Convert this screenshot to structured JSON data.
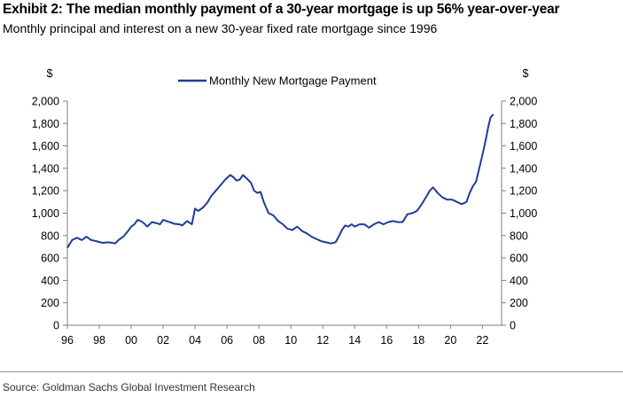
{
  "header": {
    "title": "Exhibit 2: The median monthly payment of a 30-year mortgage is up 56% year-over-year",
    "subtitle": "Monthly principal and interest on a new 30-year fixed rate mortgage since 1996"
  },
  "footer": {
    "source": "Source: Goldman Sachs Global Investment Research"
  },
  "chart_data": {
    "type": "line",
    "title": "",
    "xlabel": "",
    "ylabel_left": "$",
    "ylabel_right": "$",
    "xlim": [
      1996,
      2023.2
    ],
    "ylim": [
      0,
      2000
    ],
    "x_ticks": [
      1996,
      1998,
      2000,
      2002,
      2004,
      2006,
      2008,
      2010,
      2012,
      2014,
      2016,
      2018,
      2020,
      2022
    ],
    "x_tick_labels": [
      "96",
      "98",
      "00",
      "02",
      "04",
      "06",
      "08",
      "10",
      "12",
      "14",
      "16",
      "18",
      "20",
      "22"
    ],
    "y_ticks": [
      0,
      200,
      400,
      600,
      800,
      1000,
      1200,
      1400,
      1600,
      1800,
      2000
    ],
    "y_tick_labels": [
      "0",
      "200",
      "400",
      "600",
      "800",
      "1,000",
      "1,200",
      "1,400",
      "1,600",
      "1,800",
      "2,000"
    ],
    "grid": false,
    "legend": "top-center",
    "color": "#1f3c99",
    "series": [
      {
        "name": "Monthly New Mortgage Payment",
        "x": [
          1996.0,
          1996.3,
          1996.6,
          1996.9,
          1997.2,
          1997.5,
          1997.8,
          1998.2,
          1998.6,
          1999.0,
          1999.2,
          1999.5,
          1999.8,
          2000.0,
          2000.2,
          2000.4,
          2000.6,
          2000.8,
          2001.0,
          2001.3,
          2001.6,
          2001.8,
          2002.0,
          2002.2,
          2002.4,
          2002.7,
          2003.0,
          2003.2,
          2003.5,
          2003.8,
          2004.0,
          2004.2,
          2004.5,
          2004.8,
          2005.0,
          2005.3,
          2005.6,
          2005.9,
          2006.2,
          2006.4,
          2006.6,
          2006.8,
          2007.0,
          2007.3,
          2007.5,
          2007.7,
          2007.9,
          2008.1,
          2008.3,
          2008.6,
          2008.9,
          2009.2,
          2009.5,
          2009.8,
          2010.1,
          2010.4,
          2010.7,
          2011.0,
          2011.3,
          2011.6,
          2011.9,
          2012.2,
          2012.5,
          2012.8,
          2013.0,
          2013.2,
          2013.4,
          2013.6,
          2013.8,
          2014.0,
          2014.3,
          2014.6,
          2014.9,
          2015.2,
          2015.5,
          2015.8,
          2016.1,
          2016.4,
          2016.7,
          2017.0,
          2017.3,
          2017.6,
          2017.9,
          2018.2,
          2018.5,
          2018.7,
          2018.9,
          2019.2,
          2019.5,
          2019.8,
          2020.1,
          2020.4,
          2020.7,
          2021.0,
          2021.2,
          2021.4,
          2021.6,
          2021.8,
          2022.0,
          2022.2,
          2022.35,
          2022.5,
          2022.6,
          2022.7
        ],
        "values": [
          690,
          760,
          780,
          760,
          790,
          760,
          750,
          735,
          740,
          730,
          760,
          790,
          840,
          880,
          900,
          940,
          930,
          910,
          880,
          920,
          910,
          900,
          940,
          930,
          920,
          905,
          900,
          890,
          930,
          900,
          1040,
          1020,
          1050,
          1100,
          1150,
          1200,
          1250,
          1300,
          1340,
          1320,
          1290,
          1300,
          1340,
          1300,
          1270,
          1200,
          1180,
          1190,
          1100,
          1000,
          980,
          930,
          900,
          860,
          850,
          880,
          840,
          820,
          790,
          770,
          750,
          740,
          730,
          740,
          790,
          850,
          890,
          880,
          900,
          880,
          900,
          900,
          870,
          900,
          920,
          900,
          920,
          930,
          920,
          920,
          990,
          1000,
          1020,
          1080,
          1150,
          1200,
          1230,
          1180,
          1140,
          1120,
          1120,
          1100,
          1080,
          1100,
          1180,
          1240,
          1280,
          1400,
          1520,
          1650,
          1760,
          1850,
          1870,
          1880
        ]
      }
    ]
  }
}
